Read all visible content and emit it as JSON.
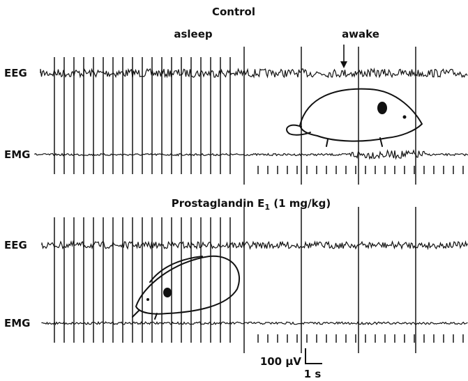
{
  "panels": [
    {
      "title": [
        "Control"
      ],
      "states": [
        "asleep",
        "awake"
      ],
      "traces": [
        "EEG",
        "EMG"
      ]
    },
    {
      "title": [
        "Prostaglandin E",
        "1",
        " (1 mg/kg)"
      ],
      "traces": [
        "EEG",
        "EMG"
      ]
    }
  ],
  "scale": {
    "voltage": "100 μV",
    "time": "1 s"
  }
}
